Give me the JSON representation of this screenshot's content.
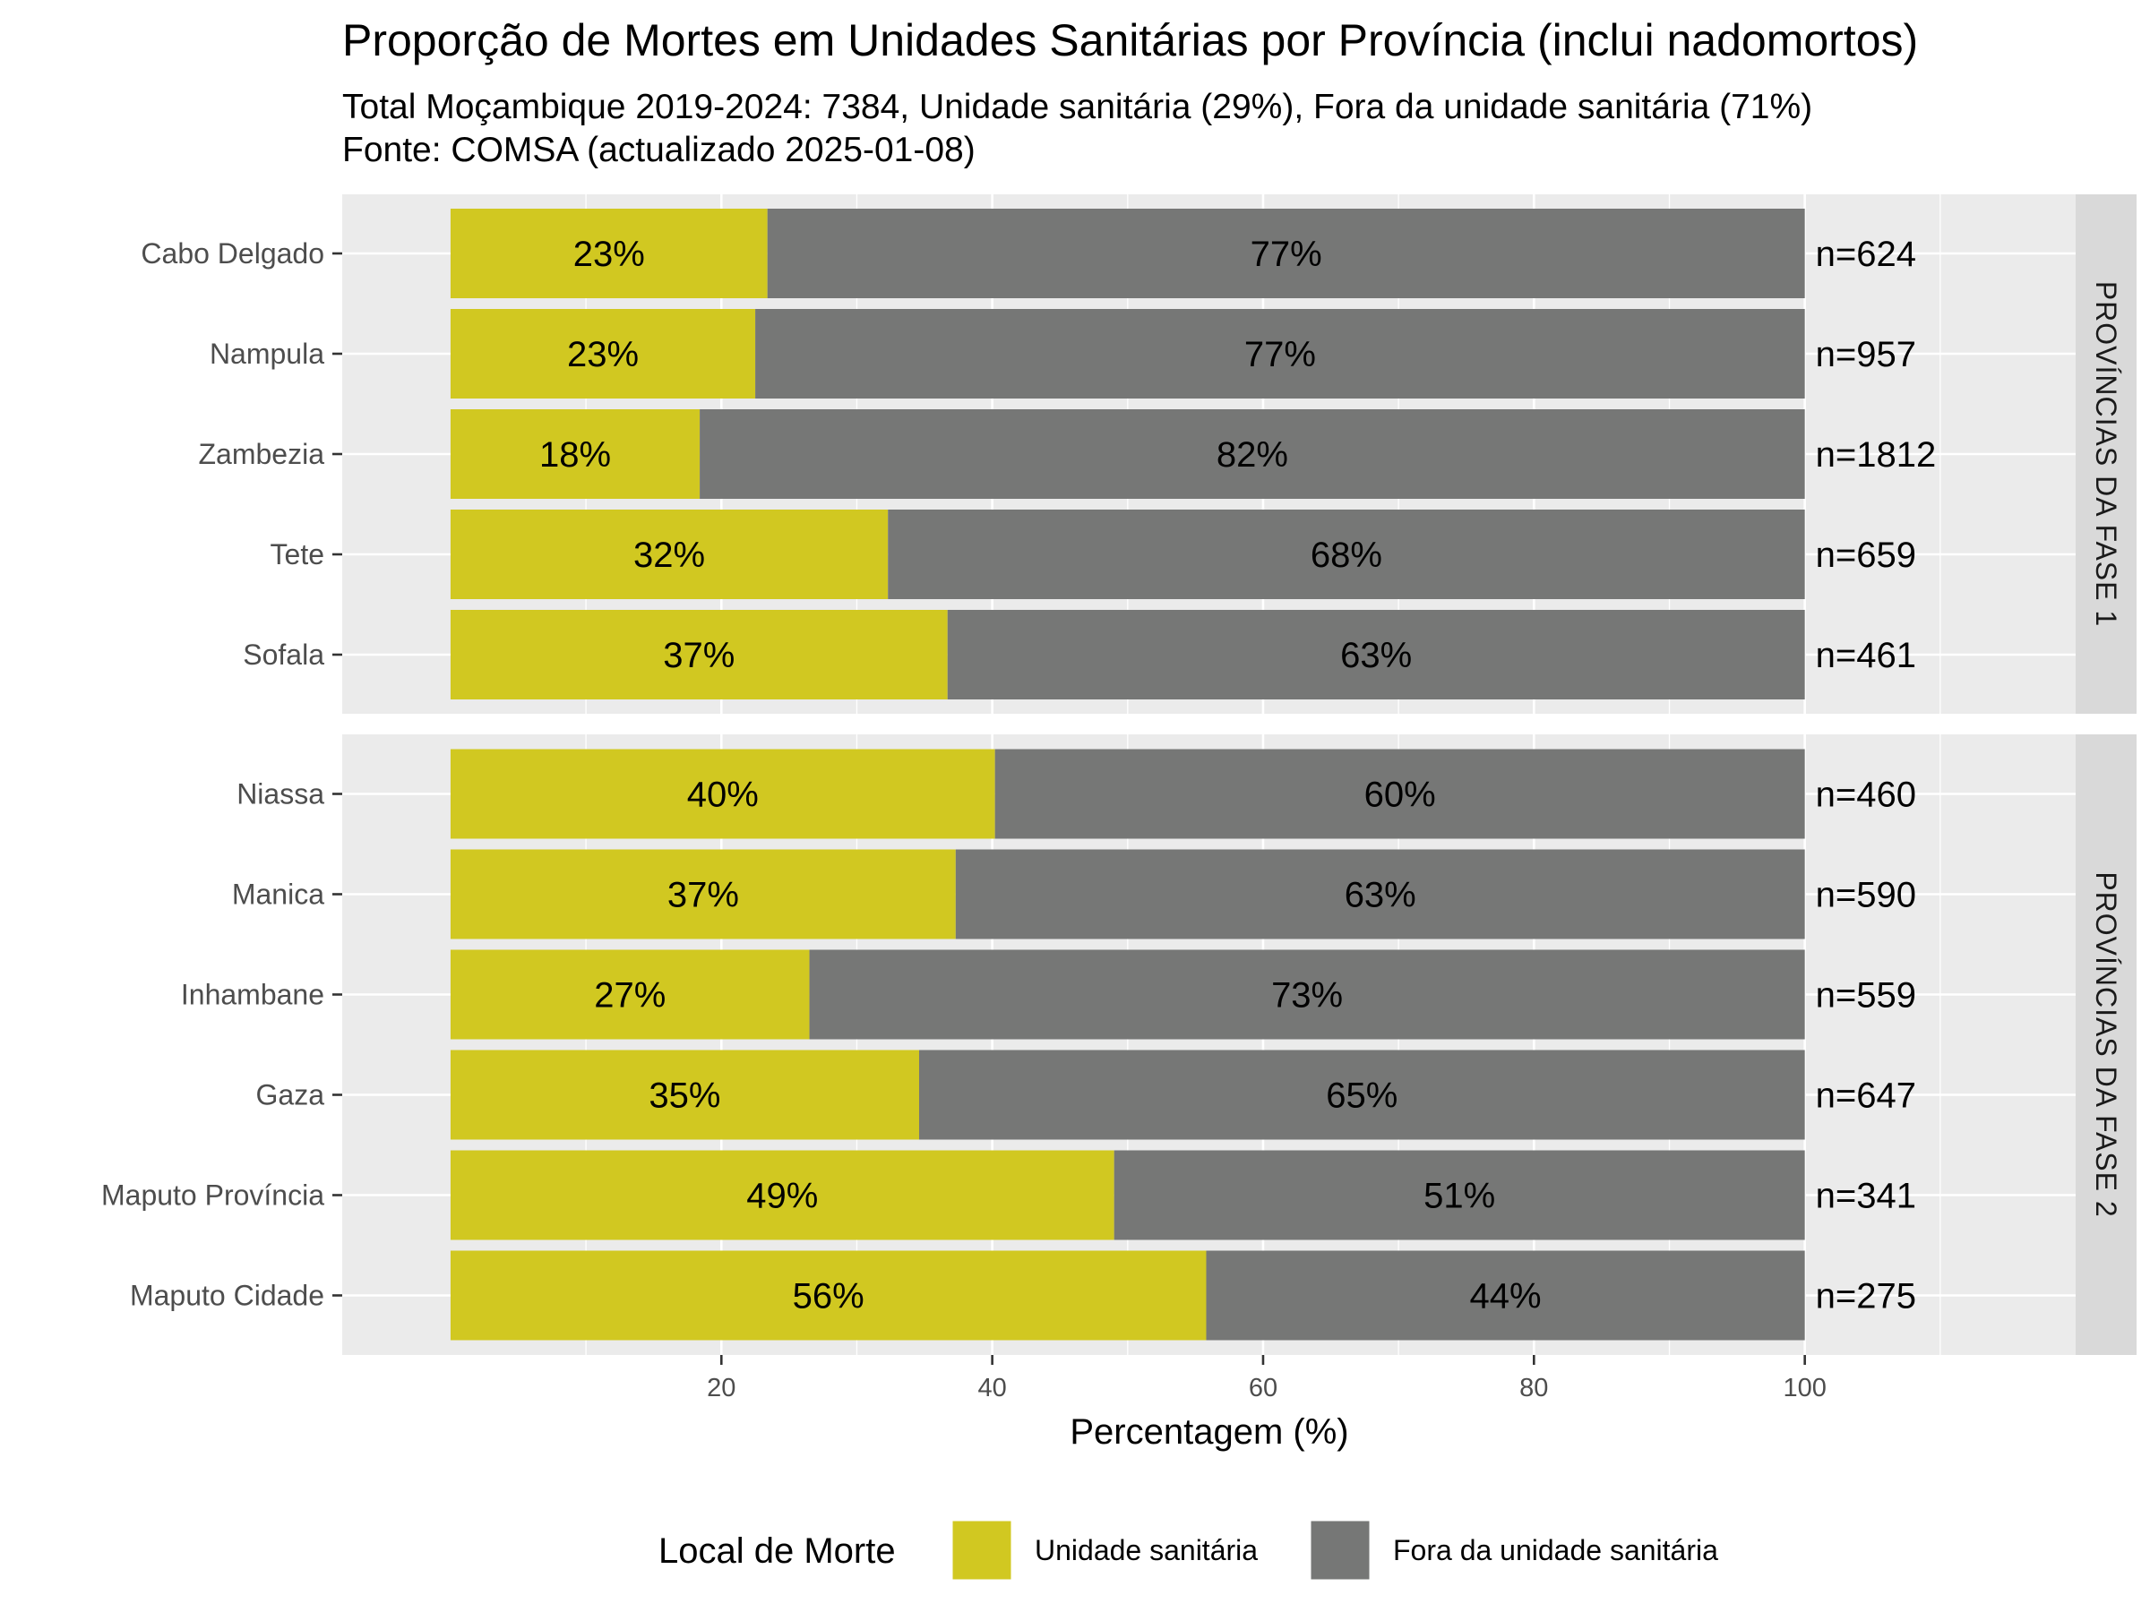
{
  "title": "Proporção de Mortes em Unidades Sanitárias por Província (inclui nadomortos)",
  "subtitle_line1": "Total Moçambique 2019-2024: 7384, Unidade sanitária (29%), Fora da unidade sanitária (71%)",
  "subtitle_line2": "Fonte: COMSA (actualizado 2025-01-08)",
  "colors": {
    "unidade": "#d1c821",
    "fora": "#767776",
    "panel_bg": "#ebebeb",
    "grid": "#ffffff",
    "strip_bg": "#d9d9d9"
  },
  "chart_data": {
    "type": "bar",
    "orientation": "horizontal",
    "stacked": true,
    "xlabel": "Percentagem (%)",
    "ylabel": "",
    "xlim": [
      -8,
      120
    ],
    "xticks": [
      20,
      40,
      60,
      80,
      100
    ],
    "grid": true,
    "legend": {
      "title": "Local de Morte",
      "placement": "bottom",
      "entries": [
        {
          "label": "Unidade sanitária",
          "color": "#d1c821"
        },
        {
          "label": "Fora da unidade sanitária",
          "color": "#767776"
        }
      ]
    },
    "panels": [
      {
        "strip": "PROVÍNCIAS  DA  FASE  1",
        "rows": [
          {
            "category": "Cabo Delgado",
            "unidade": 23.4,
            "fora": 76.6,
            "label_unidade": "23%",
            "label_fora": "77%",
            "n": "n=624"
          },
          {
            "category": "Nampula",
            "unidade": 22.5,
            "fora": 77.5,
            "label_unidade": "23%",
            "label_fora": "77%",
            "n": "n=957"
          },
          {
            "category": "Zambezia",
            "unidade": 18.4,
            "fora": 81.6,
            "label_unidade": "18%",
            "label_fora": "82%",
            "n": "n=1812"
          },
          {
            "category": "Tete",
            "unidade": 32.3,
            "fora": 67.7,
            "label_unidade": "32%",
            "label_fora": "68%",
            "n": "n=659"
          },
          {
            "category": "Sofala",
            "unidade": 36.7,
            "fora": 63.3,
            "label_unidade": "37%",
            "label_fora": "63%",
            "n": "n=461"
          }
        ]
      },
      {
        "strip": "PROVÍNCIAS  DA  FASE  2",
        "rows": [
          {
            "category": "Niassa",
            "unidade": 40.2,
            "fora": 59.8,
            "label_unidade": "40%",
            "label_fora": "60%",
            "n": "n=460"
          },
          {
            "category": "Manica",
            "unidade": 37.3,
            "fora": 62.7,
            "label_unidade": "37%",
            "label_fora": "63%",
            "n": "n=590"
          },
          {
            "category": "Inhambane",
            "unidade": 26.5,
            "fora": 73.5,
            "label_unidade": "27%",
            "label_fora": "73%",
            "n": "n=559"
          },
          {
            "category": "Gaza",
            "unidade": 34.6,
            "fora": 65.4,
            "label_unidade": "35%",
            "label_fora": "65%",
            "n": "n=647"
          },
          {
            "category": "Maputo Província",
            "unidade": 49.0,
            "fora": 51.0,
            "label_unidade": "49%",
            "label_fora": "51%",
            "n": "n=341"
          },
          {
            "category": "Maputo Cidade",
            "unidade": 55.8,
            "fora": 44.2,
            "label_unidade": "56%",
            "label_fora": "44%",
            "n": "n=275"
          }
        ]
      }
    ]
  }
}
